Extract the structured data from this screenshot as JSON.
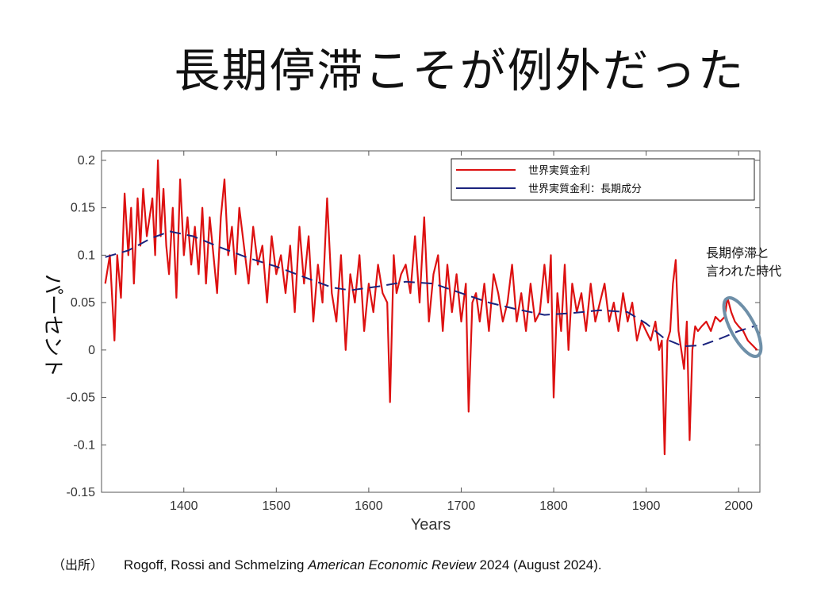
{
  "slide": {
    "title": "長期停滞こそが例外だった"
  },
  "source": {
    "label": "（出所）",
    "authors": "Rogoff, Rossi and Schmelzing ",
    "journal": "American Economic Review",
    "rest": " 2024 (August 2024)."
  },
  "colors": {
    "series_red": "#dd1111",
    "series_trend": "#1a237e",
    "annotation": "#6e8fa8"
  },
  "chart_data": {
    "type": "line",
    "title": "",
    "xlabel": "Years",
    "ylabel": "パーセント",
    "xlim": [
      1311,
      2023
    ],
    "ylim": [
      -0.15,
      0.21
    ],
    "xticks": [
      1400,
      1500,
      1600,
      1700,
      1800,
      1900,
      2000
    ],
    "yticks": [
      0.2,
      0.15,
      0.1,
      0.05,
      0,
      -0.05,
      -0.1,
      -0.15
    ],
    "xtick_labels": [
      "1400",
      "1500",
      "1600",
      "1700",
      "1800",
      "1900",
      "2000"
    ],
    "ytick_labels": [
      "0.2",
      "0.15",
      "0.1",
      "0.05",
      "0",
      "-0.05",
      "-0.1",
      "-0.15"
    ],
    "legend": {
      "position": "top-right",
      "entries": [
        "世界実質金利",
        "世界実質金利：長期成分"
      ]
    },
    "annotation": {
      "lines": [
        "長期停滞と",
        "言われた時代"
      ],
      "target_x_range": [
        1985,
        2020
      ]
    },
    "series": [
      {
        "name": "世界実質金利",
        "style": "solid",
        "x": [
          1315,
          1320,
          1325,
          1328,
          1332,
          1336,
          1340,
          1343,
          1346,
          1350,
          1353,
          1356,
          1360,
          1363,
          1366,
          1369,
          1372,
          1375,
          1378,
          1381,
          1384,
          1388,
          1392,
          1396,
          1400,
          1404,
          1408,
          1412,
          1416,
          1420,
          1424,
          1428,
          1432,
          1436,
          1440,
          1444,
          1448,
          1452,
          1456,
          1460,
          1465,
          1470,
          1475,
          1480,
          1485,
          1490,
          1495,
          1500,
          1505,
          1510,
          1515,
          1520,
          1525,
          1530,
          1535,
          1540,
          1545,
          1550,
          1555,
          1560,
          1565,
          1570,
          1575,
          1580,
          1585,
          1590,
          1595,
          1600,
          1605,
          1610,
          1615,
          1620,
          1623,
          1627,
          1630,
          1635,
          1640,
          1645,
          1650,
          1655,
          1660,
          1665,
          1670,
          1675,
          1680,
          1685,
          1690,
          1695,
          1700,
          1705,
          1708,
          1712,
          1716,
          1720,
          1725,
          1730,
          1735,
          1740,
          1745,
          1750,
          1755,
          1760,
          1765,
          1770,
          1775,
          1780,
          1785,
          1790,
          1794,
          1797,
          1800,
          1804,
          1808,
          1812,
          1816,
          1820,
          1825,
          1830,
          1835,
          1840,
          1845,
          1850,
          1855,
          1860,
          1865,
          1870,
          1875,
          1880,
          1885,
          1890,
          1895,
          1900,
          1905,
          1910,
          1914,
          1917,
          1920,
          1923,
          1926,
          1929,
          1932,
          1935,
          1938,
          1941,
          1944,
          1947,
          1950,
          1953,
          1956,
          1960,
          1965,
          1970,
          1975,
          1980,
          1985,
          1988,
          1992,
          1996,
          2000,
          2005,
          2010,
          2015,
          2020
        ],
        "values": [
          0.07,
          0.1,
          0.01,
          0.1,
          0.055,
          0.165,
          0.1,
          0.15,
          0.07,
          0.16,
          0.11,
          0.17,
          0.12,
          0.14,
          0.16,
          0.1,
          0.2,
          0.12,
          0.17,
          0.11,
          0.08,
          0.15,
          0.055,
          0.18,
          0.1,
          0.14,
          0.09,
          0.13,
          0.08,
          0.15,
          0.07,
          0.14,
          0.1,
          0.06,
          0.14,
          0.18,
          0.1,
          0.13,
          0.08,
          0.15,
          0.11,
          0.07,
          0.13,
          0.09,
          0.11,
          0.05,
          0.12,
          0.08,
          0.1,
          0.06,
          0.11,
          0.04,
          0.13,
          0.07,
          0.12,
          0.03,
          0.09,
          0.05,
          0.16,
          0.06,
          0.03,
          0.1,
          0.0,
          0.08,
          0.05,
          0.1,
          0.02,
          0.07,
          0.04,
          0.09,
          0.06,
          0.05,
          -0.055,
          0.1,
          0.06,
          0.08,
          0.09,
          0.06,
          0.12,
          0.05,
          0.14,
          0.03,
          0.08,
          0.1,
          0.02,
          0.09,
          0.04,
          0.08,
          0.03,
          0.07,
          -0.065,
          0.05,
          0.06,
          0.03,
          0.07,
          0.02,
          0.08,
          0.06,
          0.03,
          0.05,
          0.09,
          0.03,
          0.06,
          0.02,
          0.07,
          0.03,
          0.04,
          0.09,
          0.05,
          0.1,
          -0.05,
          0.06,
          0.02,
          0.09,
          0.0,
          0.07,
          0.04,
          0.06,
          0.02,
          0.07,
          0.03,
          0.05,
          0.07,
          0.03,
          0.05,
          0.02,
          0.06,
          0.03,
          0.05,
          0.01,
          0.03,
          0.02,
          0.01,
          0.03,
          0.0,
          0.01,
          -0.11,
          0.01,
          0.02,
          0.07,
          0.095,
          0.02,
          0.0,
          -0.02,
          0.03,
          -0.095,
          0.0,
          0.025,
          0.02,
          0.025,
          0.03,
          0.02,
          0.035,
          0.03,
          0.035,
          0.055,
          0.04,
          0.03,
          0.025,
          0.02,
          0.01,
          0.005,
          0.0
        ]
      },
      {
        "name": "世界実質金利：長期成分",
        "style": "dashed",
        "x": [
          1315,
          1340,
          1365,
          1385,
          1410,
          1440,
          1470,
          1500,
          1530,
          1560,
          1580,
          1610,
          1640,
          1670,
          1700,
          1730,
          1760,
          1790,
          1820,
          1850,
          1880,
          1900,
          1920,
          1940,
          1960,
          1980,
          2000,
          2020
        ],
        "values": [
          0.098,
          0.105,
          0.118,
          0.125,
          0.12,
          0.108,
          0.097,
          0.088,
          0.077,
          0.066,
          0.063,
          0.067,
          0.072,
          0.07,
          0.06,
          0.05,
          0.043,
          0.037,
          0.039,
          0.042,
          0.04,
          0.028,
          0.012,
          0.004,
          0.005,
          0.012,
          0.02,
          0.026
        ]
      }
    ]
  }
}
